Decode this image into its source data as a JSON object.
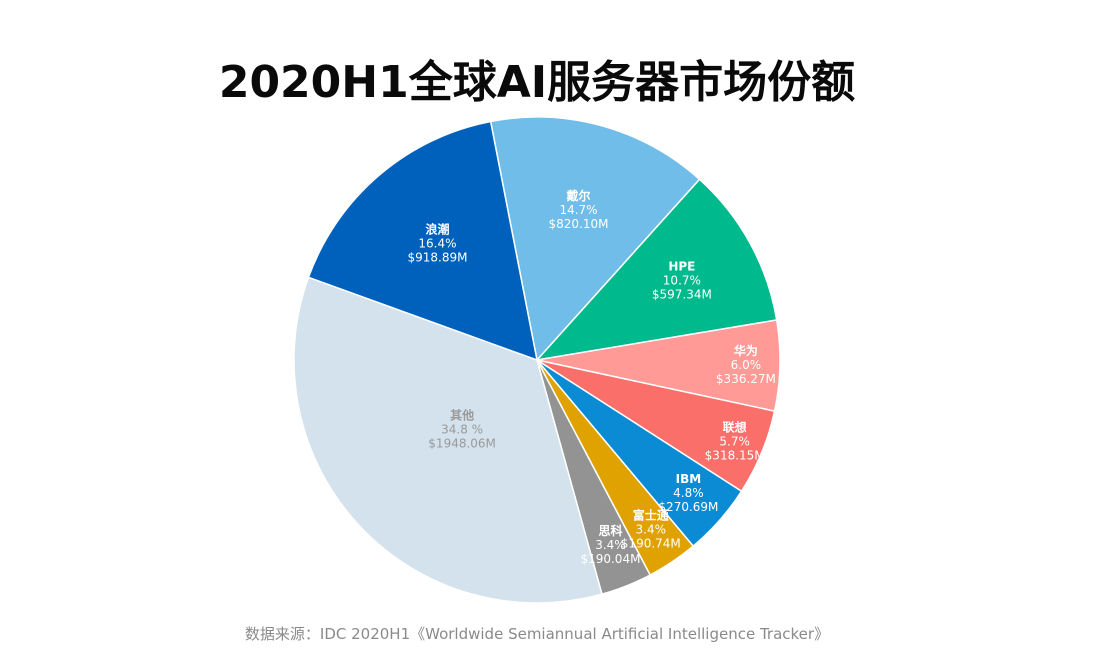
{
  "chart_data": {
    "type": "pie",
    "title": "2020H1全球AI服务器市场份额",
    "source": "数据来源：IDC 2020H1《Worldwide Semiannual Artificial Intelligence Tracker》",
    "slices": [
      {
        "name": "戴尔",
        "percent": 14.7,
        "percent_label": "14.7%",
        "value_label": "$820.10M",
        "value": 820.1,
        "color": "#6fbde8",
        "text_color": "#ffffff"
      },
      {
        "name": "HPE",
        "percent": 10.7,
        "percent_label": "10.7%",
        "value_label": "$597.34M",
        "value": 597.34,
        "color": "#00b98c",
        "text_color": "#ffffff"
      },
      {
        "name": "华为",
        "percent": 6.0,
        "percent_label": "6.0%",
        "value_label": "$336.27M",
        "value": 336.27,
        "color": "#ff9a96",
        "text_color": "#ffffff"
      },
      {
        "name": "联想",
        "percent": 5.7,
        "percent_label": "5.7%",
        "value_label": "$318.15M",
        "value": 318.15,
        "color": "#fa6f6a",
        "text_color": "#ffffff"
      },
      {
        "name": "IBM",
        "percent": 4.8,
        "percent_label": "4.8%",
        "value_label": "$270.69M",
        "value": 270.69,
        "color": "#0b8bd4",
        "text_color": "#ffffff"
      },
      {
        "name": "富士通",
        "percent": 3.4,
        "percent_label": "3.4%",
        "value_label": "$190.74M",
        "value": 190.74,
        "color": "#e0a200",
        "text_color": "#ffffff"
      },
      {
        "name": "思科",
        "percent": 3.4,
        "percent_label": "3.4%",
        "value_label": "$190.04M",
        "value": 190.04,
        "color": "#939393",
        "text_color": "#ffffff"
      },
      {
        "name": "其他",
        "percent": 34.8,
        "percent_label": "34.8 %",
        "value_label": "$1948.06M",
        "value": 1948.06,
        "color": "#d3e2ec",
        "text_color": "#9a9a9a"
      },
      {
        "name": "浪潮",
        "percent": 16.4,
        "percent_label": "16.4%",
        "value_label": "$918.89M",
        "value": 918.89,
        "color": "#0061bd",
        "text_color": "#ffffff"
      }
    ]
  }
}
